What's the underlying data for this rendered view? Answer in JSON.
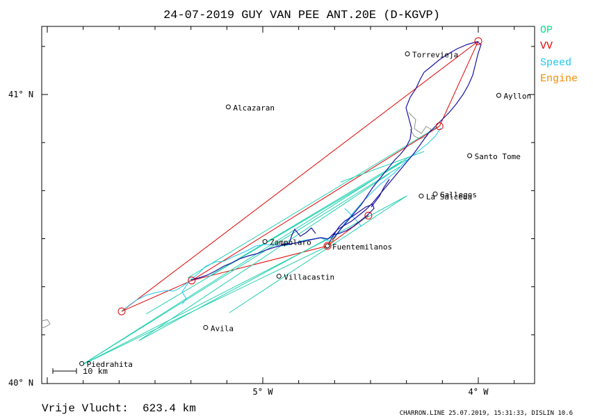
{
  "header": {
    "title": "24-07-2019   GUY VAN PEE   ANT.20E (D-KGVP)"
  },
  "legend": [
    {
      "label": "OP",
      "color": "#00e08c"
    },
    {
      "label": "VV",
      "color": "#e00000"
    },
    {
      "label": "Speed",
      "color": "#1ec8f0"
    },
    {
      "label": "Engine",
      "color": "#f08c00"
    }
  ],
  "axes": {
    "lat_ticks": [
      "41° N",
      "40° N"
    ],
    "lon_ticks": [
      "5° W",
      "4° W"
    ]
  },
  "places": [
    {
      "name": "Torrevieja",
      "lon": -4.329,
      "lat": 41.141
    },
    {
      "name": "Ayllon",
      "lon": -3.905,
      "lat": 40.997
    },
    {
      "name": "Alcazaran",
      "lon": -5.16,
      "lat": 40.957
    },
    {
      "name": "Santo Tome",
      "lon": -4.04,
      "lat": 40.788
    },
    {
      "name": "Gallegos",
      "lon": -4.2,
      "lat": 40.655
    },
    {
      "name": "La Salceda",
      "lon": -4.265,
      "lat": 40.648
    },
    {
      "name": "Zampolaro",
      "lon": -4.99,
      "lat": 40.49
    },
    {
      "name": "Fuentemilanos",
      "lon": -4.7,
      "lat": 40.475
    },
    {
      "name": "Villacastin",
      "lon": -4.925,
      "lat": 40.37
    },
    {
      "name": "Avila",
      "lon": -5.265,
      "lat": 40.192
    },
    {
      "name": "Piedrahita",
      "lon": -5.84,
      "lat": 40.067
    }
  ],
  "turnpoints": [
    {
      "lon": -5.655,
      "lat": 40.248
    },
    {
      "lon": -5.33,
      "lat": 40.355
    },
    {
      "lon": -4.7,
      "lat": 40.475
    },
    {
      "lon": -4.51,
      "lat": 40.58
    },
    {
      "lon": -4.18,
      "lat": 40.89
    },
    {
      "lon": -4.0,
      "lat": 41.185
    }
  ],
  "scale_label": "10 km",
  "footer": {
    "distance_label": "Vrije Vlucht:",
    "distance_value": "623.4 km",
    "credit": "CHARRON.LINE 25.07.2019, 15:31:33, DISLIN 10.6"
  }
}
